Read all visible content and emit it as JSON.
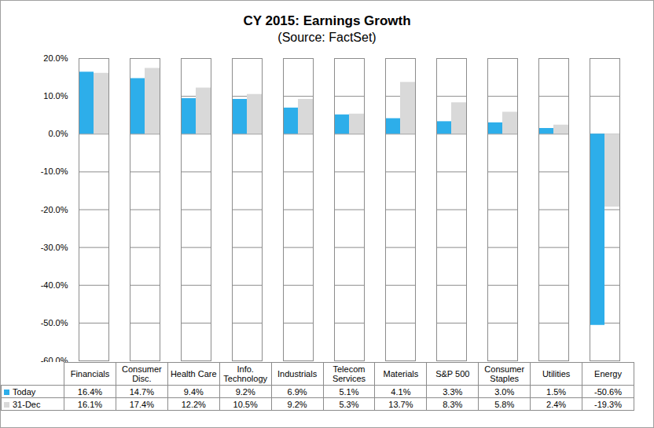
{
  "chart_data": {
    "type": "bar",
    "title": "CY 2015: Earnings Growth",
    "subtitle": "(Source: FactSet)",
    "categories": [
      "Financials",
      "Consumer Disc.",
      "Health Care",
      "Info. Technology",
      "Industrials",
      "Telecom Services",
      "Materials",
      "S&P 500",
      "Consumer Staples",
      "Utilities",
      "Energy"
    ],
    "series": [
      {
        "name": "Today",
        "color": "#2DAEEA",
        "values": [
          16.4,
          14.7,
          9.4,
          9.2,
          6.9,
          5.1,
          4.1,
          3.3,
          3.0,
          1.5,
          -50.6
        ],
        "value_labels": [
          "16.4%",
          "14.7%",
          "9.4%",
          "9.2%",
          "6.9%",
          "5.1%",
          "4.1%",
          "3.3%",
          "3.0%",
          "1.5%",
          "-50.6%"
        ]
      },
      {
        "name": "31-Dec",
        "color": "#D9D9D9",
        "values": [
          16.1,
          17.4,
          12.2,
          10.5,
          9.2,
          5.3,
          13.7,
          8.3,
          5.8,
          2.4,
          -19.3
        ],
        "value_labels": [
          "16.1%",
          "17.4%",
          "12.2%",
          "10.5%",
          "9.2%",
          "5.3%",
          "13.7%",
          "8.3%",
          "5.8%",
          "2.4%",
          "-19.3%"
        ]
      }
    ],
    "ylim": [
      -60,
      20
    ],
    "yticks": [
      {
        "value": 20,
        "label": "20.0%"
      },
      {
        "value": 10,
        "label": "10.0%"
      },
      {
        "value": 0,
        "label": "0.0%"
      },
      {
        "value": -10,
        "label": "-10.0%"
      },
      {
        "value": -20,
        "label": "-20.0%"
      },
      {
        "value": -30,
        "label": "-30.0%"
      },
      {
        "value": -40,
        "label": "-40.0%"
      },
      {
        "value": -50,
        "label": "-50.0%"
      },
      {
        "value": -60,
        "label": "-60.0%"
      }
    ],
    "grid": true
  }
}
